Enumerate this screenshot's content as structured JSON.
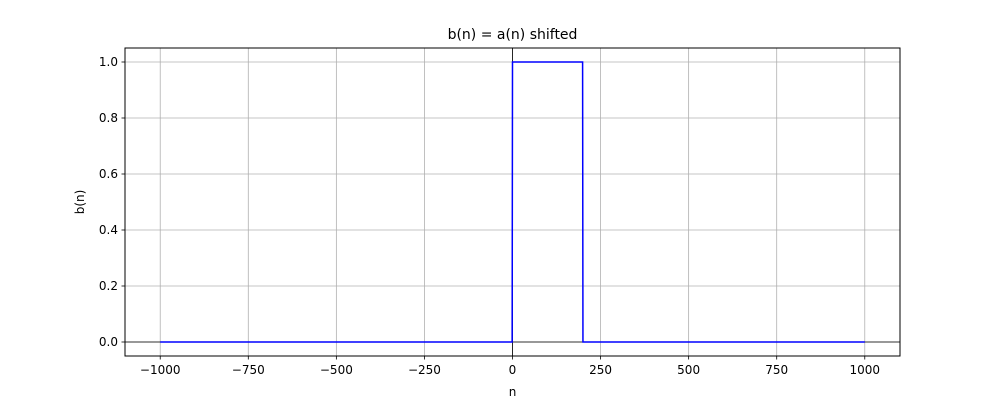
{
  "chart_data": {
    "type": "line",
    "title": "b(n) = a(n) shifted",
    "xlabel": "n",
    "ylabel": "b(n)",
    "xlim": [
      -1100,
      1100
    ],
    "ylim": [
      -0.05,
      1.05
    ],
    "grid": true,
    "zero_lines": true,
    "x_ticks": [
      -1000,
      -750,
      -500,
      -250,
      0,
      250,
      500,
      750,
      1000
    ],
    "x_tick_labels": [
      "−1000",
      "−750",
      "−500",
      "−250",
      "0",
      "250",
      "500",
      "750",
      "1000"
    ],
    "y_ticks": [
      0.0,
      0.2,
      0.4,
      0.6,
      0.8,
      1.0
    ],
    "y_tick_labels": [
      "0.0",
      "0.2",
      "0.4",
      "0.6",
      "0.8",
      "1.0"
    ],
    "series": [
      {
        "color": "#0000ff",
        "x": [
          -1000,
          -1,
          0,
          199,
          200,
          1000
        ],
        "y": [
          0,
          0,
          1,
          1,
          0,
          0
        ]
      }
    ]
  }
}
